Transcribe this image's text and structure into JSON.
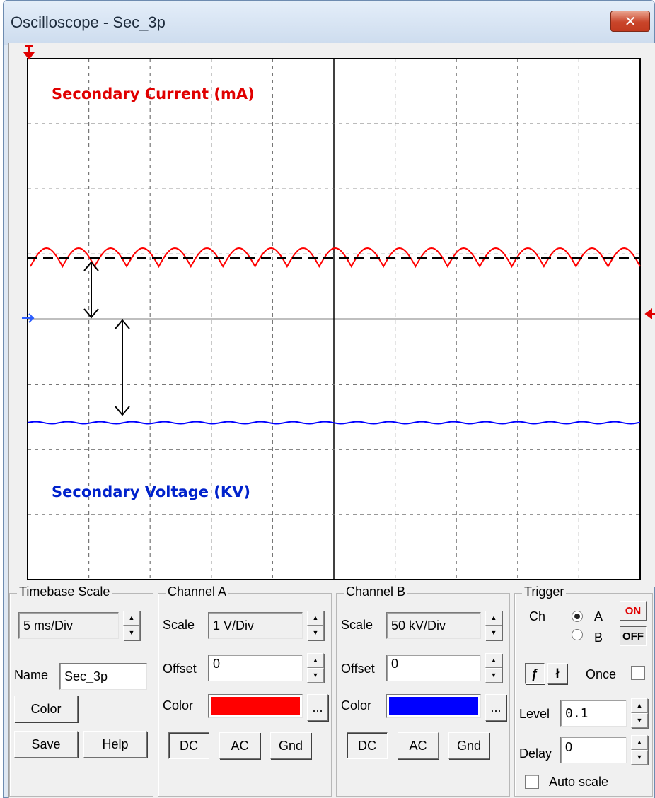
{
  "window": {
    "title": "Oscilloscope - Sec_3p",
    "close_symbol": "✕"
  },
  "display": {
    "annotation_current": "Secondary Current (mA)",
    "annotation_voltage": "Secondary Voltage (KV)",
    "colors": {
      "channel_a": "#ff0000",
      "channel_b": "#0000ff",
      "grid": "#000000",
      "annotation_current": "#e00000",
      "annotation_voltage": "#0022cc"
    }
  },
  "timebase": {
    "title": "Timebase Scale",
    "scale_value": "5 ms/Div",
    "name_label": "Name",
    "name_value": "Sec_3p",
    "color_button": "Color",
    "save_button": "Save",
    "help_button": "Help"
  },
  "channel_a": {
    "title": "Channel A",
    "scale_label": "Scale",
    "scale_value": "1 V/Div",
    "offset_label": "Offset",
    "offset_value": "0",
    "color_label": "Color",
    "color": "#ff0000",
    "browse_label": "...",
    "dc": "DC",
    "ac": "AC",
    "gnd": "Gnd"
  },
  "channel_b": {
    "title": "Channel B",
    "scale_label": "Scale",
    "scale_value": "50 kV/Div",
    "offset_label": "Offset",
    "offset_value": "0",
    "color_label": "Color",
    "color": "#0000ff",
    "browse_label": "...",
    "dc": "DC",
    "ac": "AC",
    "gnd": "Gnd"
  },
  "trigger": {
    "title": "Trigger",
    "ch_label": "Ch",
    "option_a": "A",
    "option_b": "B",
    "selected": "A",
    "on_label": "ON",
    "off_label": "OFF",
    "once_label": "Once",
    "level_label": "Level",
    "level_value": "0.1",
    "delay_label": "Delay",
    "delay_value": "0",
    "auto_scale_label": "Auto scale"
  }
}
